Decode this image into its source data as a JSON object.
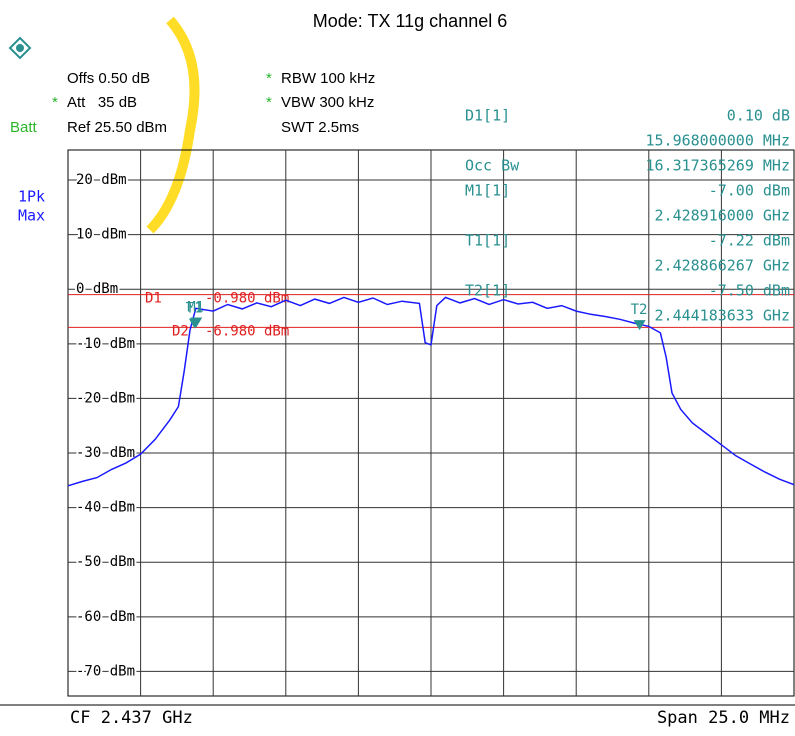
{
  "chart_data": {
    "type": "line",
    "title": "Mode: TX 11g channel 6",
    "header": {
      "offs": "Offs 0.50 dB",
      "att_flag": "*",
      "att": "Att   35 dB",
      "batt": "Batt",
      "ref": "Ref 25.50 dBm",
      "rbw_flag": "*",
      "rbw": "RBW 100 kHz",
      "vbw_flag": "*",
      "vbw": "VBW 300 kHz",
      "swt": "SWT 2.5ms"
    },
    "trace_label": [
      "1Pk",
      "Max"
    ],
    "readouts": [
      {
        "label": "D1[1]",
        "value": "0.10 dB",
        "detail": "15.968000000 MHz"
      },
      {
        "label": "Occ Bw",
        "value": "16.317365269 MHz"
      },
      {
        "label": "M1[1]",
        "value": "-7.00 dBm",
        "detail": "2.428916000 GHz"
      },
      {
        "label": "T1[1]",
        "value": "-7.22 dBm",
        "detail": "2.428866267 GHz"
      },
      {
        "label": "T2[1]",
        "value": "-7.50 dBm",
        "detail": "2.444183633 GHz"
      }
    ],
    "footer": {
      "cf": "CF 2.437 GHz",
      "span": "Span 25.0 MHz"
    },
    "xlim": [
      2424.5,
      2449.5
    ],
    "xticks": [
      2427,
      2429.5,
      2432,
      2434.5,
      2437,
      2439.5,
      2442,
      2444.5,
      2447
    ],
    "ylim": [
      -74.5,
      25.5
    ],
    "yticks": [
      {
        "value": 20,
        "label": "20 dBm"
      },
      {
        "value": 10,
        "label": "10 dBm"
      },
      {
        "value": 0,
        "label": "0 dBm"
      },
      {
        "value": -10,
        "label": "-10 dBm"
      },
      {
        "value": -20,
        "label": "-20 dBm"
      },
      {
        "value": -30,
        "label": "-30 dBm"
      },
      {
        "value": -40,
        "label": "-40 dBm"
      },
      {
        "value": -50,
        "label": "-50 dBm"
      },
      {
        "value": -60,
        "label": "-60 dBm"
      },
      {
        "value": -70,
        "label": "-70 dBm"
      }
    ],
    "grid": true,
    "x": [
      2424.5,
      2425,
      2425.5,
      2426,
      2426.5,
      2427,
      2427.5,
      2428,
      2428.3,
      2428.5,
      2428.7,
      2428.9,
      2429.5,
      2430,
      2430.5,
      2431,
      2431.5,
      2432,
      2432.5,
      2433,
      2433.5,
      2434,
      2434.5,
      2435,
      2435.5,
      2436,
      2436.6,
      2436.8,
      2437,
      2437.2,
      2437.5,
      2438,
      2438.5,
      2439,
      2439.5,
      2440,
      2440.5,
      2441,
      2441.5,
      2442,
      2442.5,
      2443,
      2443.5,
      2444,
      2444.5,
      2444.9,
      2445.1,
      2445.3,
      2445.6,
      2446,
      2446.5,
      2447,
      2447.5,
      2448,
      2448.5,
      2449,
      2449.5
    ],
    "series": [
      {
        "color": "#1a1aff",
        "values": [
          -36.0,
          -35.2,
          -34.5,
          -33.0,
          -31.8,
          -30.2,
          -27.5,
          -24.0,
          -21.5,
          -15.0,
          -7.5,
          -3.5,
          -4.0,
          -2.8,
          -3.6,
          -2.5,
          -3.2,
          -2.0,
          -3.0,
          -1.8,
          -2.6,
          -1.5,
          -2.4,
          -1.6,
          -2.8,
          -2.2,
          -2.6,
          -9.8,
          -10.2,
          -3.0,
          -1.5,
          -2.5,
          -1.7,
          -2.8,
          -1.9,
          -2.7,
          -2.4,
          -3.5,
          -3.0,
          -4.0,
          -4.6,
          -5.0,
          -5.5,
          -6.2,
          -6.8,
          -8.0,
          -12.5,
          -19.0,
          -22.0,
          -24.5,
          -26.5,
          -28.5,
          -30.5,
          -32.0,
          -33.5,
          -34.8,
          -35.8
        ]
      }
    ],
    "display_lines": [
      {
        "name": "D1",
        "value": -0.98,
        "label": "-0.980 dBm"
      },
      {
        "name": "D2",
        "value": -6.98,
        "label": "-6.980 dBm"
      }
    ],
    "markers": [
      {
        "name": "M1",
        "x": 2428.916,
        "y": -7.0
      },
      {
        "name": "T1",
        "x": 2428.866267,
        "y": -7.22
      },
      {
        "name": "T2",
        "x": 2444.183633,
        "y": -7.5
      }
    ]
  }
}
